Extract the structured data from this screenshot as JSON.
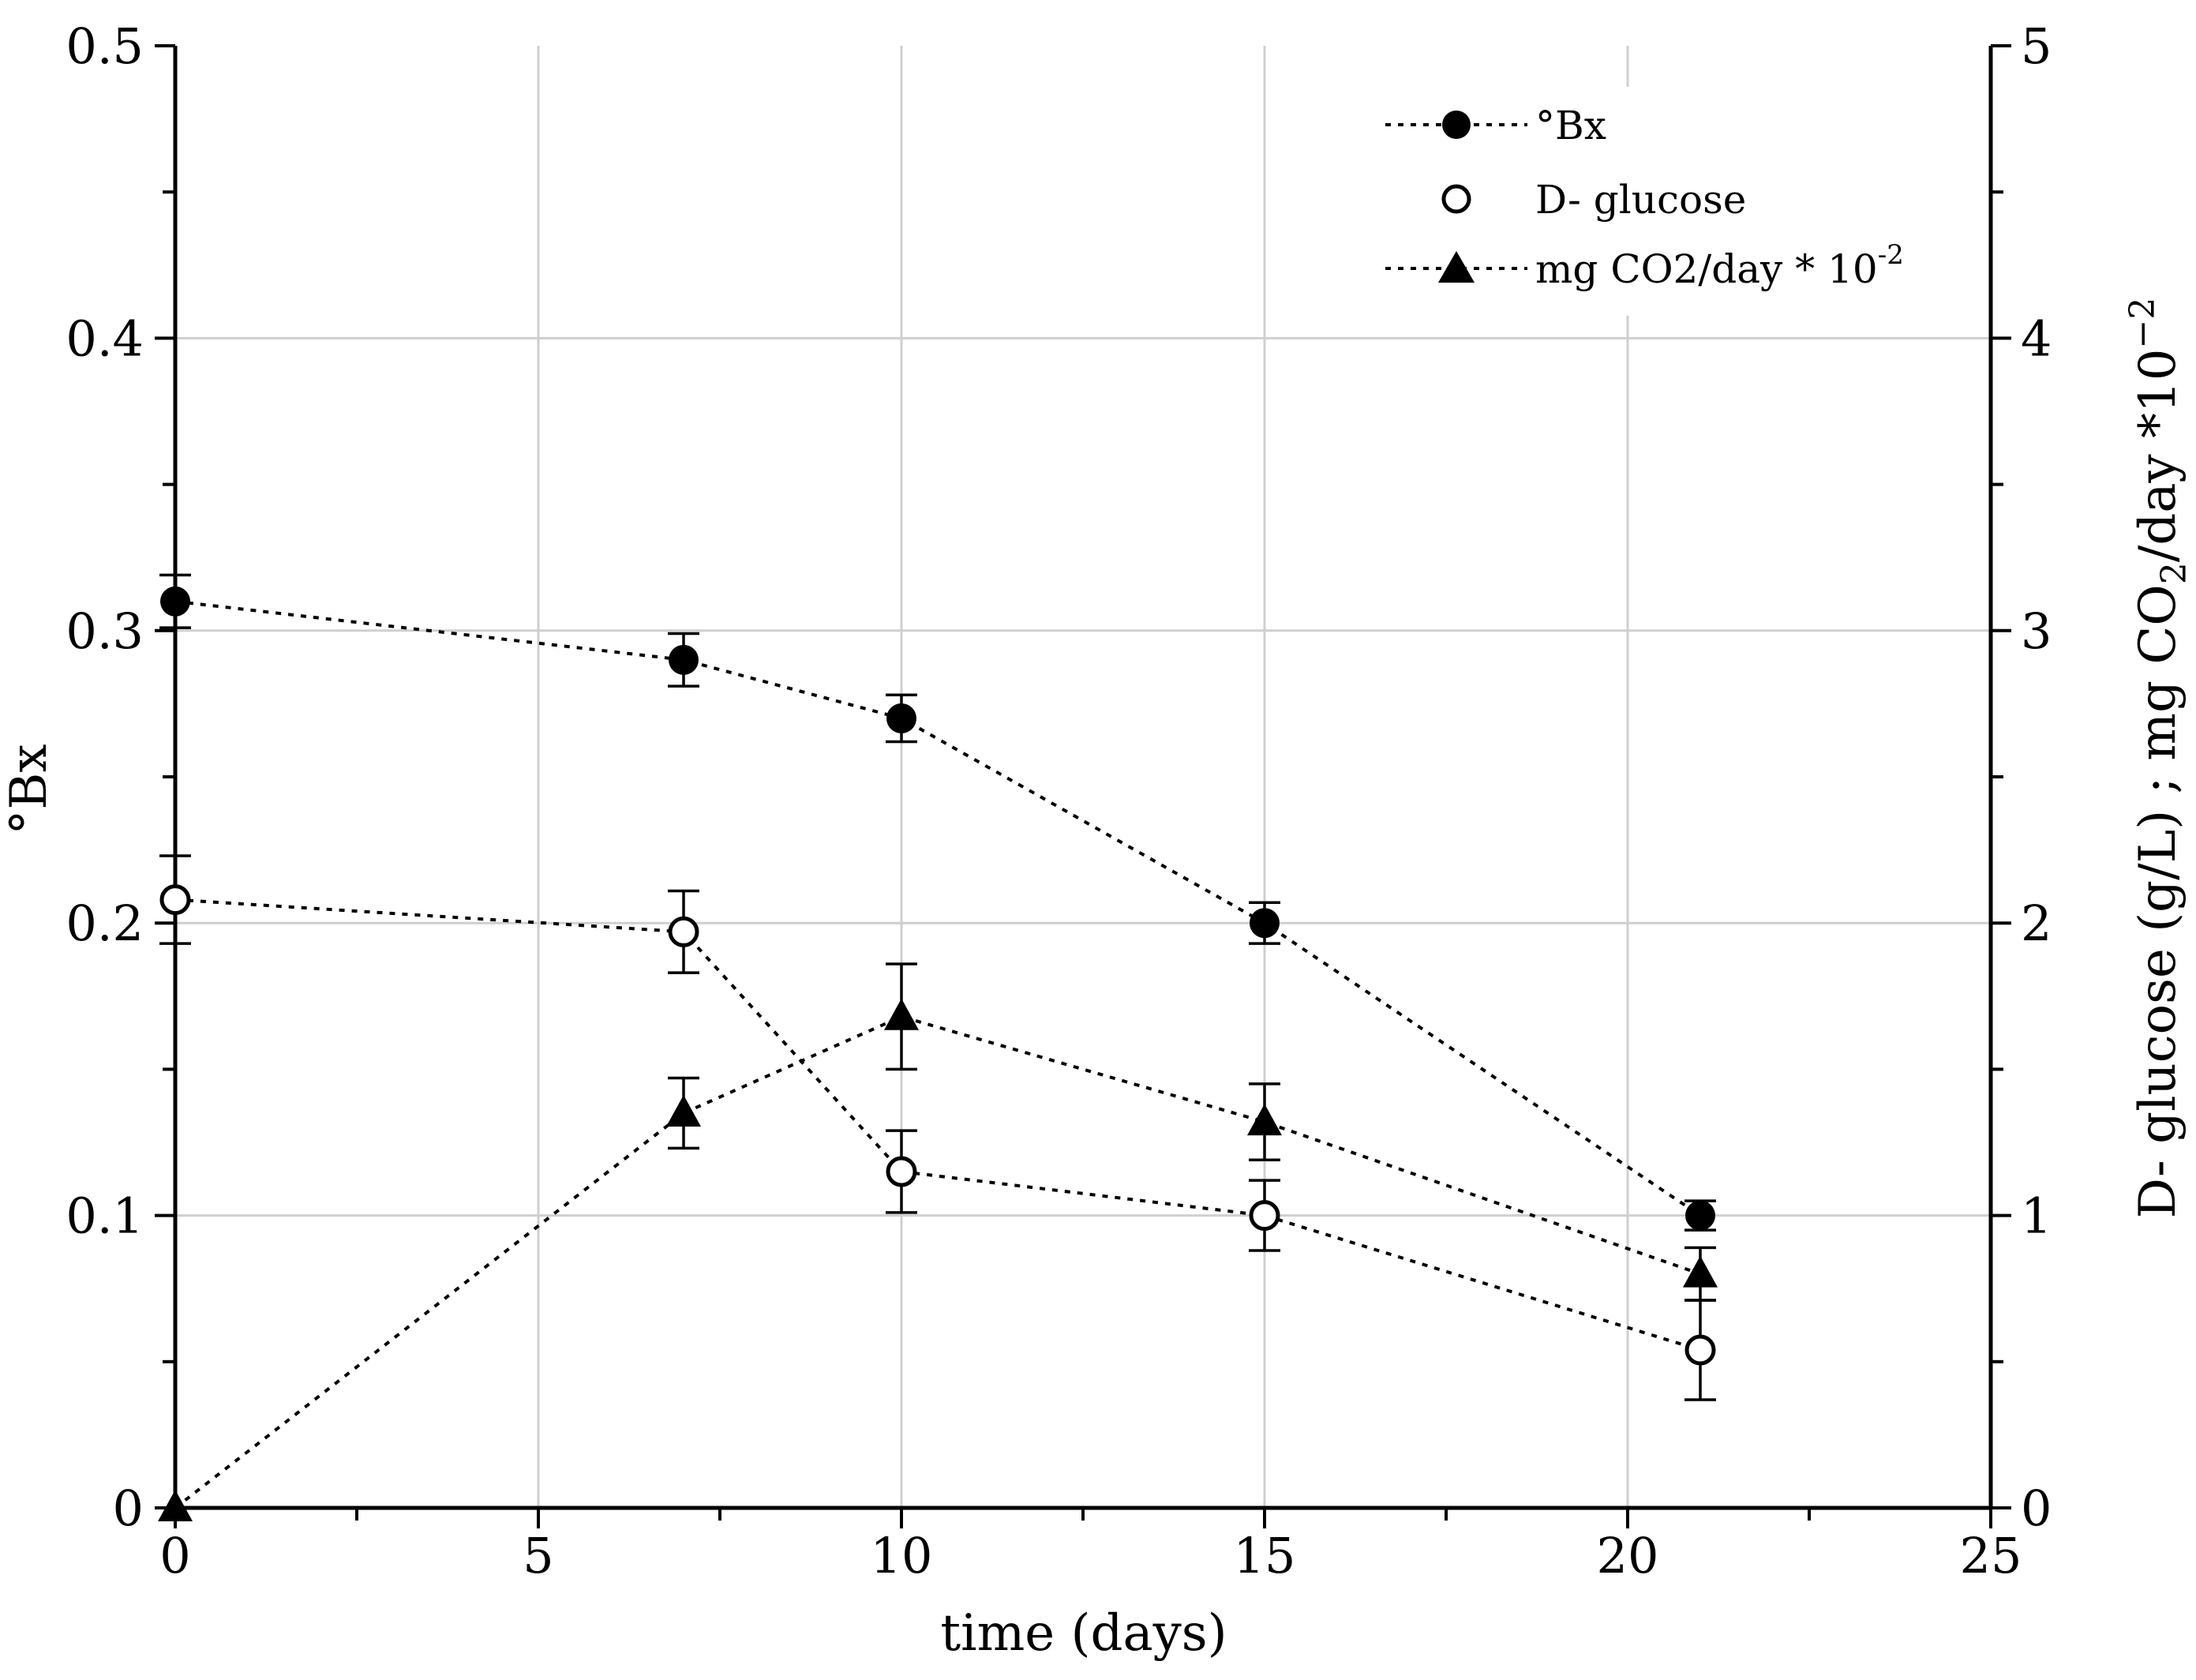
{
  "chart_data": {
    "type": "line",
    "xlabel": "time (days)",
    "ylabel_left": "°Bx",
    "ylabel_right_parts": [
      "D- glucose (g/L) ; mg CO",
      "2",
      "/day *10",
      "−2"
    ],
    "x_ticks": [
      "0",
      "5",
      "10",
      "15",
      "20",
      "25"
    ],
    "y_left_ticks": [
      "0",
      "0.1",
      "0.2",
      "0.3",
      "0.4",
      "0.5"
    ],
    "y_right_ticks": [
      "0",
      "1",
      "2",
      "3",
      "4",
      "5"
    ],
    "xlim": [
      0,
      25
    ],
    "ylim_left": [
      0,
      0.5
    ],
    "ylim_right": [
      0,
      5
    ],
    "grid": true,
    "legend_position": "top-right",
    "series": [
      {
        "name": "°Bx",
        "legend_label": "°Bx",
        "axis": "left",
        "marker": "filled-circle",
        "x": [
          0,
          7,
          10,
          15,
          21
        ],
        "y": [
          0.31,
          0.29,
          0.27,
          0.2,
          0.1
        ],
        "err": [
          0.009,
          0.009,
          0.008,
          0.007,
          0.005
        ]
      },
      {
        "name": "D- glucose",
        "legend_label": "D- glucose",
        "axis": "right",
        "marker": "open-circle",
        "x": [
          0,
          7,
          10,
          15,
          21
        ],
        "y": [
          2.08,
          1.97,
          1.15,
          1.0,
          0.54
        ],
        "err": [
          0.15,
          0.14,
          0.14,
          0.12,
          0.17
        ]
      },
      {
        "name": "mg CO2/day * 10-2",
        "legend_label": "mg CO2/day * 10",
        "legend_superscript": "-2",
        "axis": "right",
        "marker": "filled-triangle",
        "x": [
          0,
          7,
          10,
          15,
          21
        ],
        "y": [
          0.0,
          1.35,
          1.68,
          1.32,
          0.8
        ],
        "err": [
          0.0,
          0.12,
          0.18,
          0.13,
          0.09
        ]
      }
    ]
  }
}
